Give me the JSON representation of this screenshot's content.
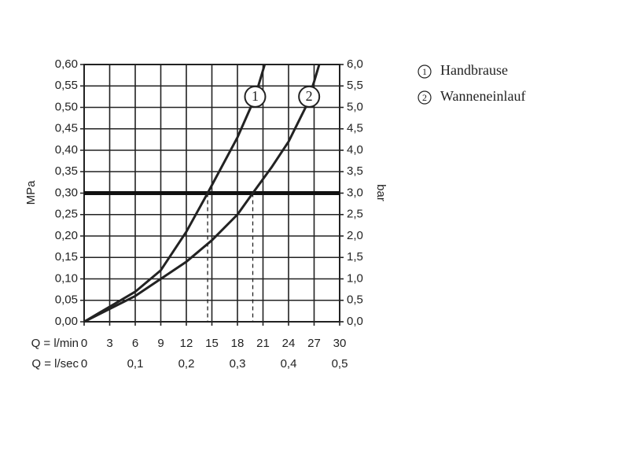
{
  "chart_data": {
    "type": "line",
    "x_label": "Q = l/min",
    "x2_label": "Q = l/sec",
    "y_label": "MPa",
    "y2_label": "bar",
    "xlim": [
      0,
      30
    ],
    "xticks": [
      0,
      3,
      6,
      9,
      12,
      15,
      18,
      21,
      24,
      27,
      30
    ],
    "x2lim": [
      0,
      0.5
    ],
    "x2ticks": [
      0,
      {
        "value": 0.1,
        "label": "0,1"
      },
      {
        "value": 0.2,
        "label": "0,2"
      },
      {
        "value": 0.3,
        "label": "0,3"
      },
      {
        "value": 0.4,
        "label": "0,4"
      },
      {
        "value": 0.5,
        "label": "0,5"
      }
    ],
    "ylim": [
      0,
      0.6
    ],
    "yticks": [
      {
        "value": 0,
        "label": "0,00"
      },
      {
        "value": 0.05,
        "label": "0,05"
      },
      {
        "value": 0.1,
        "label": "0,10"
      },
      {
        "value": 0.15,
        "label": "0,15"
      },
      {
        "value": 0.2,
        "label": "0,20"
      },
      {
        "value": 0.25,
        "label": "0,25"
      },
      {
        "value": 0.3,
        "label": "0,30"
      },
      {
        "value": 0.35,
        "label": "0,35"
      },
      {
        "value": 0.4,
        "label": "0,40"
      },
      {
        "value": 0.45,
        "label": "0,45"
      },
      {
        "value": 0.5,
        "label": "0,50"
      },
      {
        "value": 0.55,
        "label": "0,55"
      },
      {
        "value": 0.6,
        "label": "0,60"
      }
    ],
    "y2lim": [
      0,
      6
    ],
    "y2ticks": [
      {
        "value": 0,
        "label": "0,0"
      },
      {
        "value": 0.5,
        "label": "0,5"
      },
      {
        "value": 1,
        "label": "1,0"
      },
      {
        "value": 1.5,
        "label": "1,5"
      },
      {
        "value": 2,
        "label": "2,0"
      },
      {
        "value": 2.5,
        "label": "2,5"
      },
      {
        "value": 3,
        "label": "3,0"
      },
      {
        "value": 3.5,
        "label": "3,5"
      },
      {
        "value": 4,
        "label": "4,0"
      },
      {
        "value": 4.5,
        "label": "4,5"
      },
      {
        "value": 5,
        "label": "5,0"
      },
      {
        "value": 5.5,
        "label": "5,5"
      },
      {
        "value": 6,
        "label": "6,0"
      }
    ],
    "grid": true,
    "hline": 0.3,
    "dropline_x": [
      14.5,
      19.8
    ],
    "series": [
      {
        "name": "Handbrause",
        "marker_label": "1",
        "color": "#222222",
        "x": [
          0,
          3,
          6,
          9,
          12,
          14.5,
          18,
          20,
          21.2
        ],
        "values": [
          0,
          0.035,
          0.07,
          0.12,
          0.21,
          0.3,
          0.43,
          0.52,
          0.6
        ]
      },
      {
        "name": "Wanneneinlauf",
        "marker_label": "2",
        "color": "#222222",
        "x": [
          0,
          3,
          6,
          9,
          12,
          15,
          18,
          19.8,
          22,
          24,
          26,
          27,
          27.6
        ],
        "values": [
          0,
          0.03,
          0.06,
          0.1,
          0.14,
          0.19,
          0.25,
          0.3,
          0.36,
          0.42,
          0.5,
          0.56,
          0.6
        ]
      }
    ],
    "legend": "top-right"
  }
}
